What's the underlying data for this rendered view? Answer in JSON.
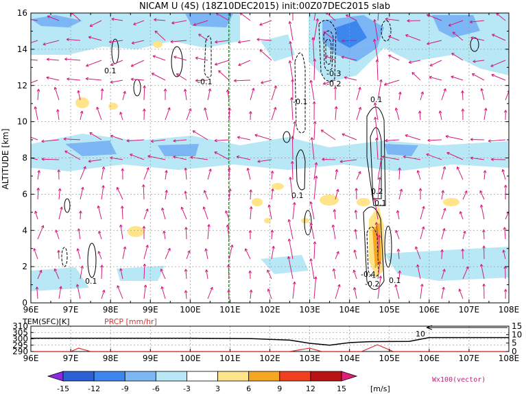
{
  "title": "NICAM  U  (4S)  (18Z10DEC2015)  init:00Z07DEC2015  slab",
  "main_panel": {
    "ylabel": "ALTITUDE  [km]",
    "y_ticks": [
      "0",
      "2",
      "4",
      "6",
      "8",
      "10",
      "12",
      "14",
      "16"
    ],
    "x_ticks": [
      "96E",
      "97E",
      "98E",
      "99E",
      "100E",
      "101E",
      "102E",
      "103E",
      "104E",
      "105E",
      "106E",
      "107E",
      "108E"
    ],
    "contour_labels": [
      "0.1",
      "-0.1",
      "-0.3",
      "-0.2",
      "-0.1",
      "0.1",
      "0.1",
      "0.2",
      "0.1",
      "-0.4",
      "-0.2",
      "0.1",
      "0.1"
    ]
  },
  "bottom_panel": {
    "left_title": "TEM(SFC)[K]",
    "right_title": "PRCP [mm/hr]",
    "left_ticks": [
      "310",
      "305",
      "300",
      "295",
      "290"
    ],
    "right_ticks": [
      "15",
      "10",
      "5",
      "0"
    ],
    "ref_label": "10",
    "x_ticks": [
      "96E",
      "97E",
      "98E",
      "99E",
      "100E",
      "101E",
      "102E",
      "103E",
      "104E",
      "105E",
      "106E",
      "107E",
      "108E"
    ]
  },
  "colorbar": {
    "labels": [
      "-15",
      "-12",
      "-9",
      "-6",
      "-3",
      "3",
      "6",
      "9",
      "12",
      "15"
    ],
    "unit": "[m/s]",
    "colors": [
      "#8a2be2",
      "#2a5fd6",
      "#3c86ee",
      "#7cb6f5",
      "#b8e8f5",
      "#ffffff",
      "#ffe48a",
      "#f5a623",
      "#f0401e",
      "#b81414",
      "#e0207a"
    ]
  },
  "vector_label": "Wx100(vector)",
  "chart_data": {
    "type": "heatmap",
    "title": "NICAM  U  (4S)  (18Z10DEC2015)  init:00Z07DEC2015  slab",
    "xlabel": "",
    "ylabel": "ALTITUDE  [km]",
    "xlim": [
      96,
      108
    ],
    "ylim": [
      0,
      16
    ],
    "zonal_wind_regions": [
      {
        "x": [
          96,
          102.5
        ],
        "y": [
          14.2,
          16
        ],
        "u_range": [
          -6,
          -3
        ]
      },
      {
        "x": [
          103.3,
          105.6
        ],
        "y": [
          13.5,
          16
        ],
        "u_range": [
          -9,
          -6
        ]
      },
      {
        "x": [
          96,
          108
        ],
        "y": [
          7.4,
          9.2
        ],
        "u_range": [
          -6,
          -3
        ]
      },
      {
        "x": [
          104.3,
          104.8
        ],
        "y": [
          1,
          4.6
        ],
        "u_range": [
          3,
          9
        ]
      },
      {
        "x": [
          98.1,
          98.6
        ],
        "y": [
          3.8,
          4.4
        ],
        "u_range": [
          3,
          6
        ]
      }
    ],
    "green_reference_line_x": 100.97,
    "surface_temperature": {
      "x": [
        96,
        100,
        101.5,
        102.5,
        103.0,
        103.5,
        104.0,
        104.5,
        105.5,
        106.0,
        108
      ],
      "values": [
        300.5,
        300.5,
        300.2,
        299.0,
        296.5,
        295.0,
        297.0,
        297.8,
        298.0,
        301.0,
        301.0
      ]
    },
    "precipitation": {
      "x": [
        96,
        97.0,
        97.2,
        97.5,
        102.5,
        103.0,
        103.3,
        104.3,
        104.7,
        105.1,
        108
      ],
      "values": [
        0,
        0,
        2,
        0,
        0,
        2,
        0,
        0,
        4,
        0,
        0
      ]
    }
  }
}
